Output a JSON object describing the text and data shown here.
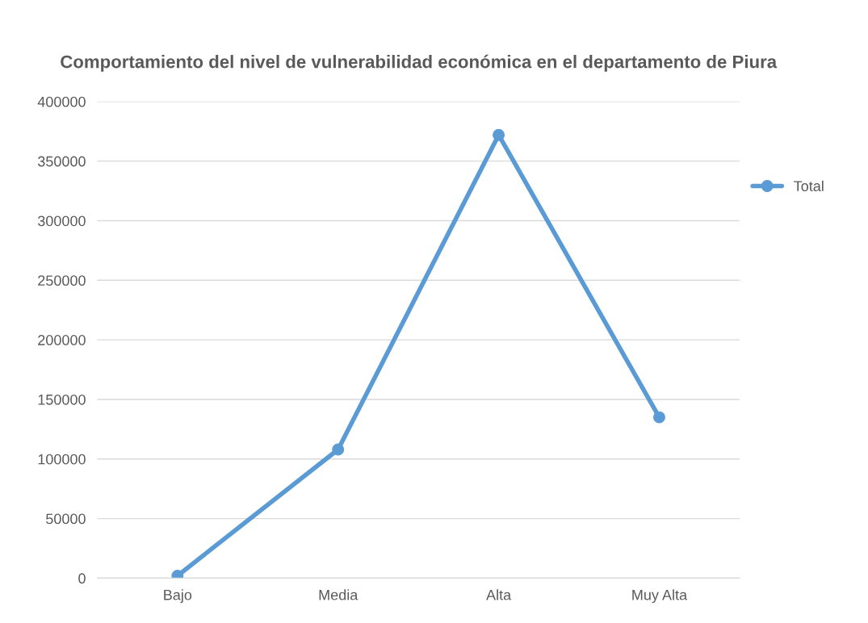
{
  "chart_data": {
    "type": "line",
    "title": "Comportamiento del nivel de vulnerabilidad económica en el departamento de Piura",
    "categories": [
      "Bajo",
      "Media",
      "Alta",
      "Muy Alta"
    ],
    "series": [
      {
        "name": "Total",
        "color": "#5b9bd5",
        "values": [
          2000,
          108000,
          372000,
          135000
        ]
      }
    ],
    "ylim": [
      0,
      400000
    ],
    "yticks": [
      0,
      50000,
      100000,
      150000,
      200000,
      250000,
      300000,
      350000,
      400000
    ],
    "grid": "y",
    "legend": "right",
    "marker": "circle"
  }
}
